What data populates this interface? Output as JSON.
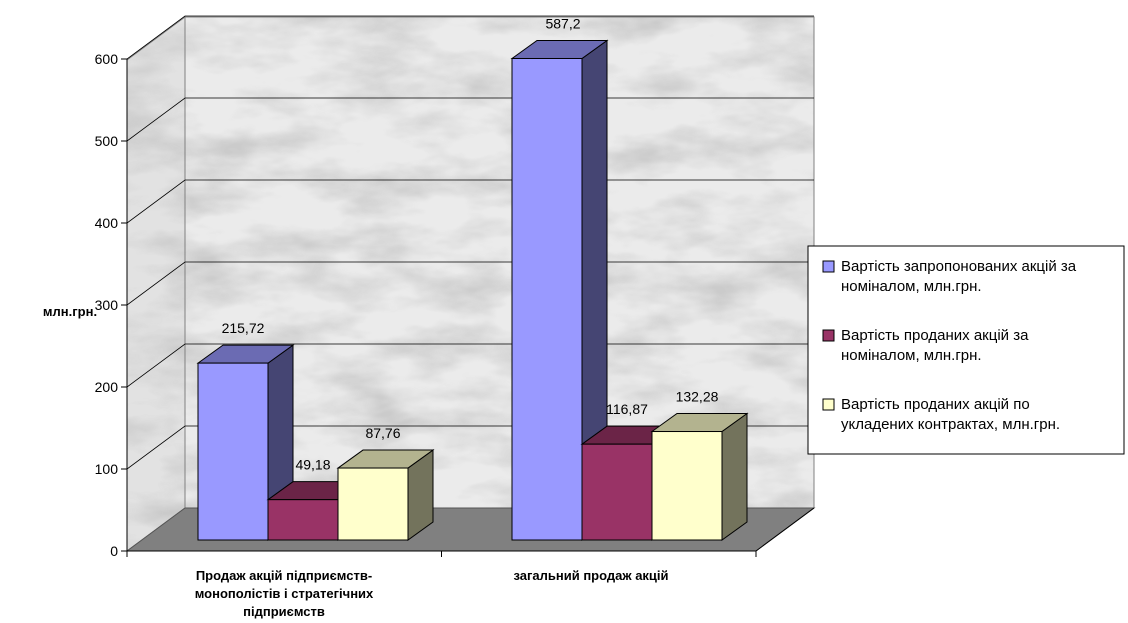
{
  "chart_data": {
    "type": "bar",
    "ylabel": "млн.грн.",
    "ylim": [
      0,
      600
    ],
    "yticks": [
      "0",
      "100",
      "200",
      "300",
      "400",
      "500",
      "600"
    ],
    "categories": [
      [
        "Продаж акцій підприємств-",
        "монополістів і стратегічних",
        "підприємств"
      ],
      [
        "загальний продаж акцій"
      ]
    ],
    "series": [
      {
        "name": "Вартість запропонованих акцій за номіналом, млн.грн.",
        "name_lines": [
          "Вартість запропонованих акцій за",
          "номіналом, млн.грн."
        ],
        "values": [
          215.72,
          587.2
        ],
        "labels": [
          "215,72",
          "587,2"
        ],
        "color": "#9999FF"
      },
      {
        "name": "Вартість проданих акцій за номіналом, млн.грн.",
        "name_lines": [
          "Вартість проданих акцій за",
          "номіналом, млн.грн."
        ],
        "values": [
          49.18,
          116.87
        ],
        "labels": [
          "49,18",
          "116,87"
        ],
        "color": "#993366"
      },
      {
        "name": "Вартість проданих акцій по укладених контрактах, млн.грн.",
        "name_lines": [
          "Вартість проданих акцій по",
          "укладених контрактах, млн.грн."
        ],
        "values": [
          87.76,
          132.28
        ],
        "labels": [
          "87,76",
          "132,28"
        ],
        "color": "#FFFFCC"
      }
    ],
    "legend_position": "right",
    "grid": true,
    "background": "marble-texture"
  }
}
